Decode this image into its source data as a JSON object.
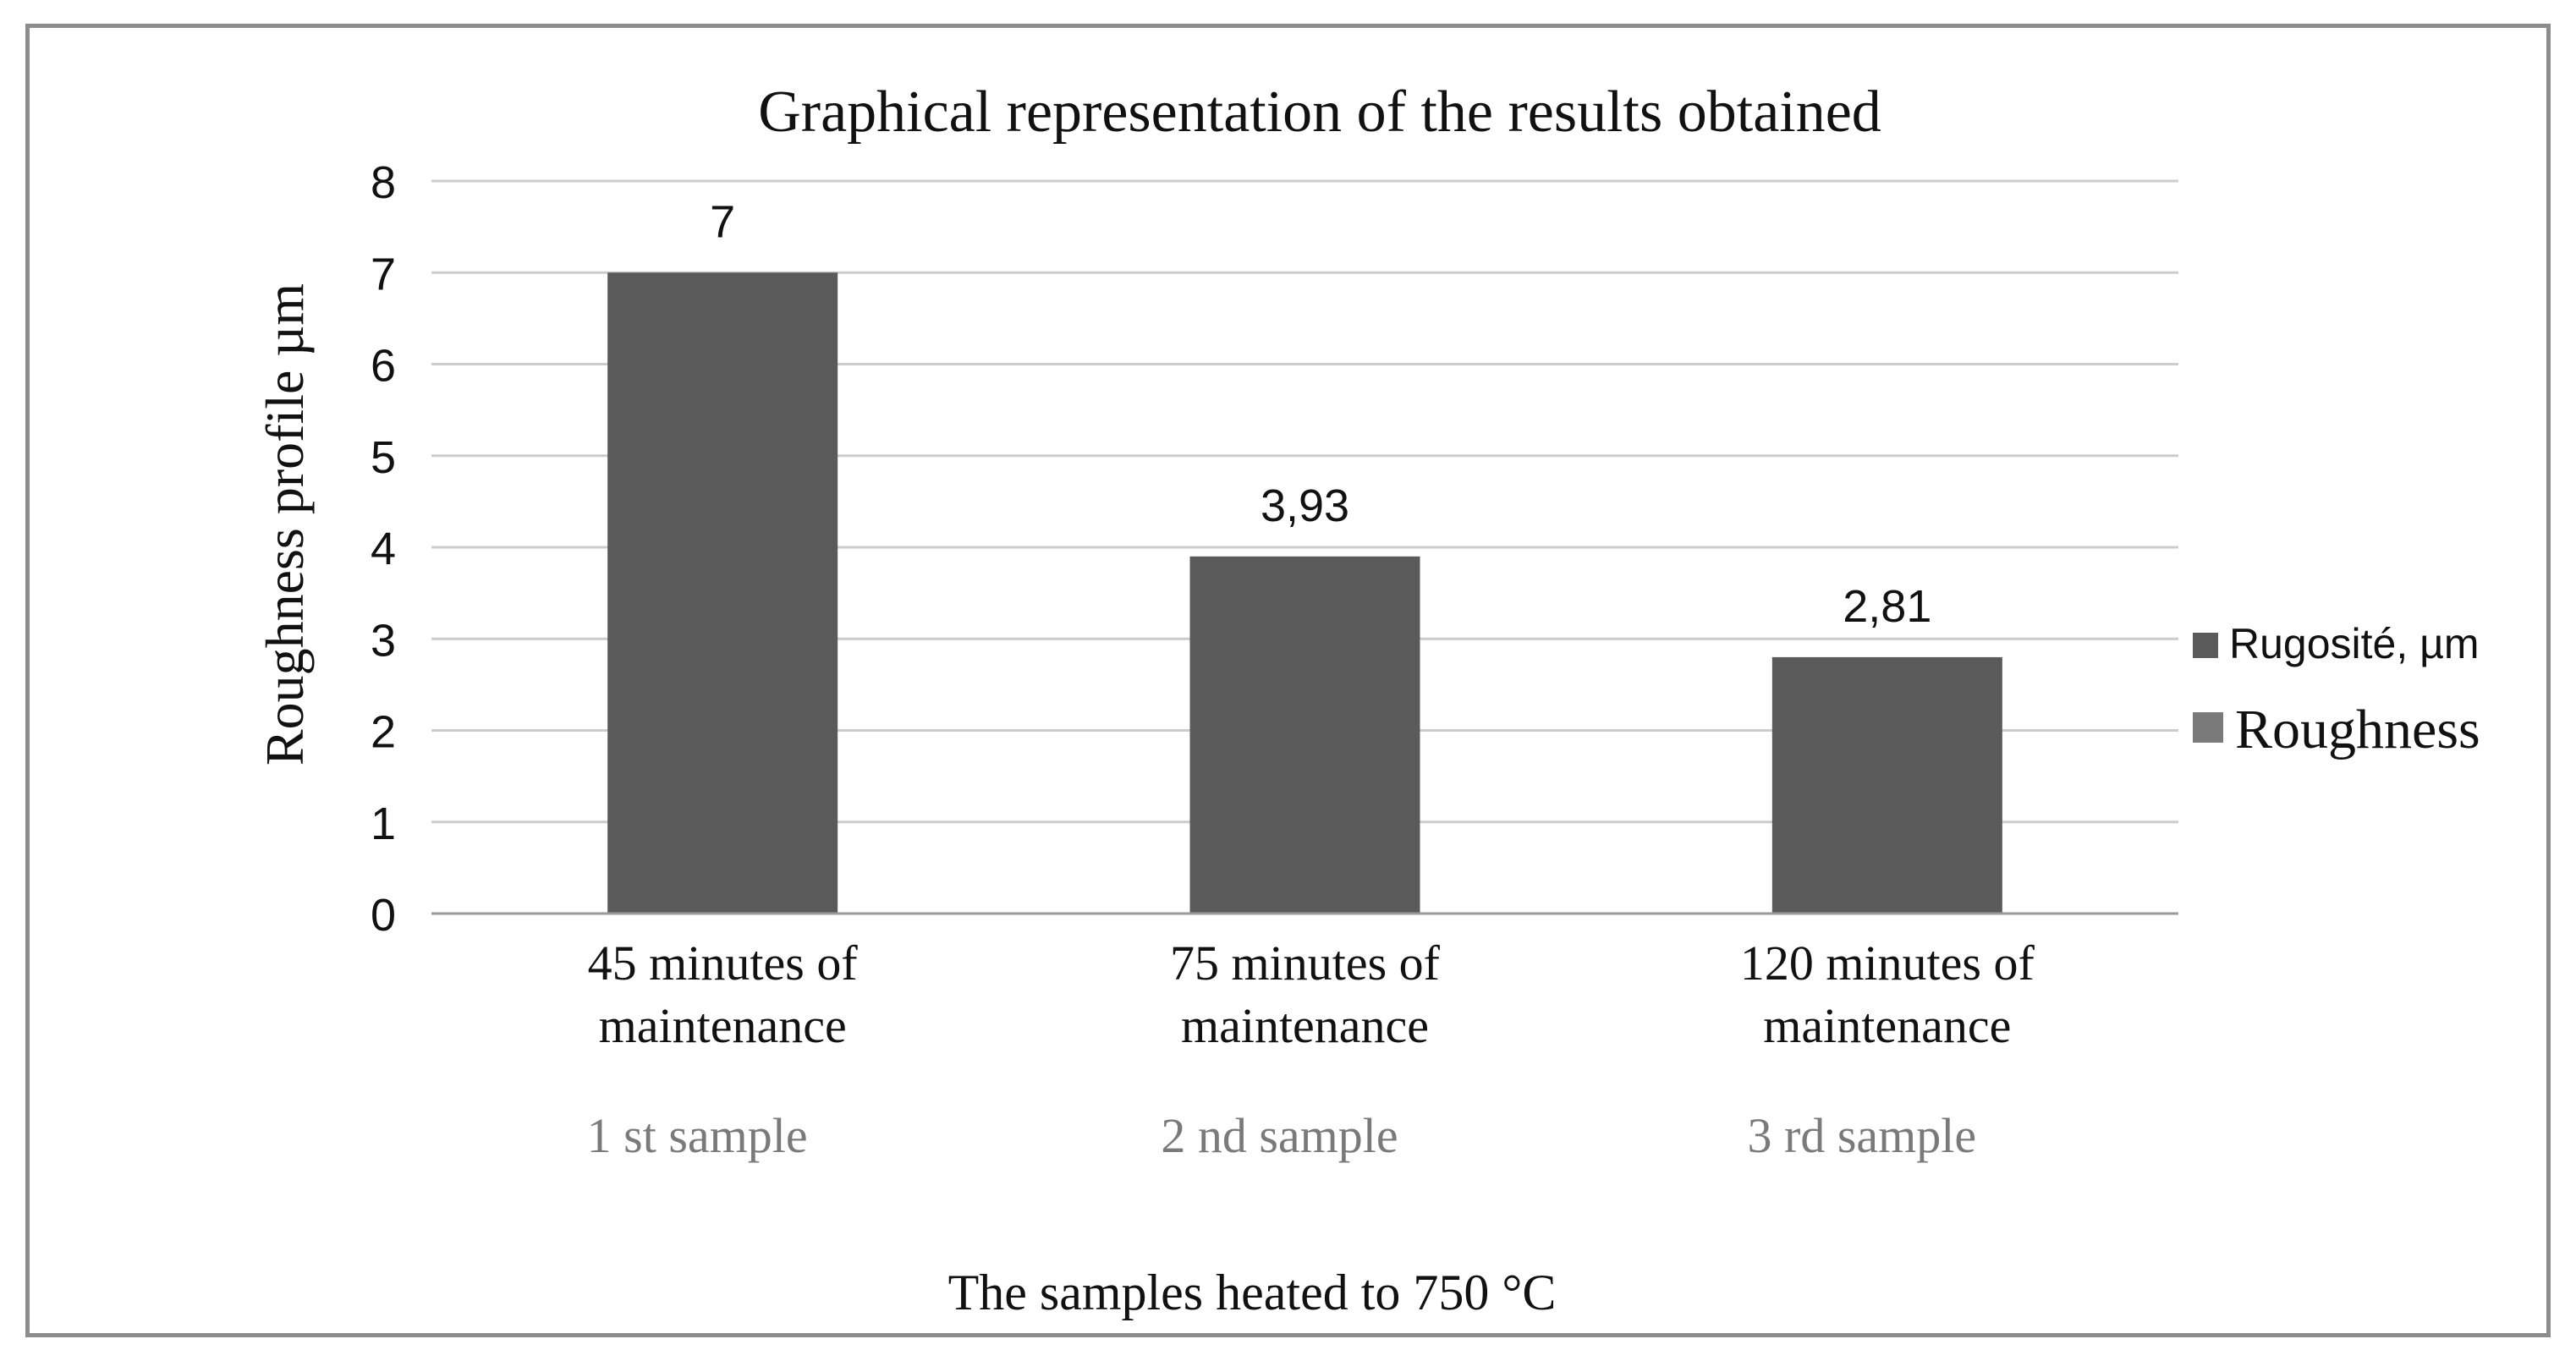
{
  "chart_data": {
    "type": "bar",
    "title": "Graphical representation of the results obtained",
    "xlabel": "The samples heated to 750 °C",
    "ylabel": "Roughness profile   µm",
    "ylim": [
      0,
      8
    ],
    "yticks": [
      "0",
      "1",
      "2",
      "3",
      "4",
      "5",
      "6",
      "7",
      "8"
    ],
    "grid": true,
    "legend_position": "right",
    "categories": [
      {
        "line1": "45 minutes of",
        "line2": "maintenance",
        "sample": "1 st sample"
      },
      {
        "line1": "75 minutes of",
        "line2": "maintenance",
        "sample": "2 nd sample"
      },
      {
        "line1": "120 minutes of",
        "line2": "maintenance",
        "sample": "3 rd sample"
      }
    ],
    "values": [
      7,
      3.9,
      2.8
    ],
    "data_labels": [
      "7",
      "3,93",
      "2,81"
    ],
    "legend": [
      {
        "label": "Rugosité, µm",
        "color": "#5a5a5a"
      },
      {
        "label": "Roughness",
        "color": "#7a7a7a"
      }
    ],
    "bar_color": "#5a5a5a",
    "grid_color": "#cccccc",
    "sample_label_color": "#7a7a7a"
  }
}
